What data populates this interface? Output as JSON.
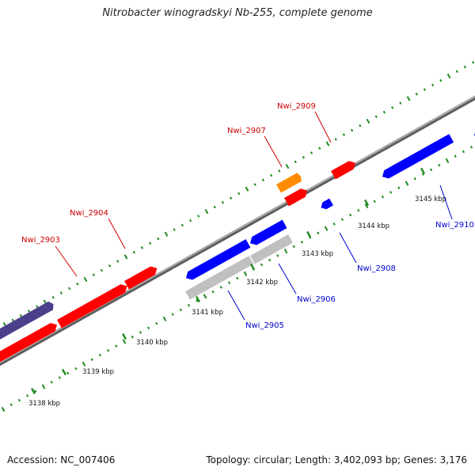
{
  "title": "Nitrobacter winogradskyi Nb-255, complete genome",
  "accession": "Accession: NC_007406",
  "summary": "Topology: circular; Length: 3,402,093 bp; Genes: 3,176",
  "colors": {
    "forward_gene": "#ff0000",
    "reverse_gene": "#0000ff",
    "highlight_gene": "#ff8c00",
    "pseudo_gene": "#c0c0c0",
    "other_gene": "#4a3f8a",
    "tick": "#1e8a1e",
    "backbone": "#777777",
    "forward_label": "#cc0000",
    "reverse_label": "#0000cc"
  },
  "ticks": [
    {
      "label": "3138 kbp",
      "value": 3138
    },
    {
      "label": "3139 kbp",
      "value": 3139
    },
    {
      "label": "3140 kbp",
      "value": 3140
    },
    {
      "label": "3141 kbp",
      "value": 3141
    },
    {
      "label": "3142 kbp",
      "value": 3142
    },
    {
      "label": "3143 kbp",
      "value": 3143
    },
    {
      "label": "3144 kbp",
      "value": 3144
    },
    {
      "label": "3145 kbp",
      "value": 3145
    }
  ],
  "labels": [
    {
      "name": "Nwi_2903",
      "strand": "forward"
    },
    {
      "name": "Nwi_2904",
      "strand": "forward"
    },
    {
      "name": "Nwi_2907",
      "strand": "forward"
    },
    {
      "name": "Nwi_2909",
      "strand": "forward"
    },
    {
      "name": "Nwi_2905",
      "strand": "reverse"
    },
    {
      "name": "Nwi_2906",
      "strand": "reverse"
    },
    {
      "name": "Nwi_2908",
      "strand": "reverse"
    },
    {
      "name": "Nwi_2910",
      "strand": "reverse"
    }
  ]
}
